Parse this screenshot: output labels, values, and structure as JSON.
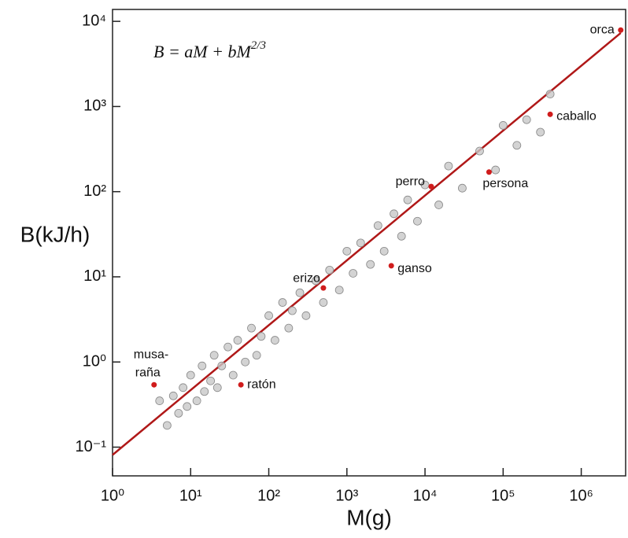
{
  "chart_data": {
    "type": "scatter",
    "annotation": "B = aM + bM",
    "annotation_exponent": "2/3",
    "x_label": "M(g)",
    "y_label": "B(kJ/h)",
    "log_x": true,
    "log_y": true,
    "xlim": [
      1,
      3700000
    ],
    "ylim": [
      0.046,
      13800
    ],
    "xticks": [
      {
        "value": 1,
        "label": "10⁰"
      },
      {
        "value": 10,
        "label": "10¹"
      },
      {
        "value": 100,
        "label": "10²"
      },
      {
        "value": 1000,
        "label": "10³"
      },
      {
        "value": 10000,
        "label": "10⁴"
      },
      {
        "value": 100000,
        "label": "10⁵"
      },
      {
        "value": 1000000,
        "label": "10⁶"
      }
    ],
    "yticks": [
      {
        "value": 0.1,
        "label": "10⁻¹"
      },
      {
        "value": 1,
        "label": "10⁰"
      },
      {
        "value": 10,
        "label": "10¹"
      },
      {
        "value": 100,
        "label": "10²"
      },
      {
        "value": 1000,
        "label": "10³"
      },
      {
        "value": 10000,
        "label": "10⁴"
      }
    ],
    "series": [
      {
        "color": "#c8c8c8",
        "x": [
          4,
          5,
          6,
          7,
          8,
          9,
          10,
          12,
          14,
          15,
          18,
          20,
          22,
          25,
          30,
          35,
          40,
          50,
          60,
          70,
          80,
          100,
          120,
          150,
          180,
          200,
          250,
          300,
          400,
          500,
          600,
          800,
          1000,
          1200,
          1500,
          2000,
          2500,
          3000,
          4000,
          5000,
          6000,
          8000,
          10000,
          15000,
          20000,
          30000,
          50000,
          80000,
          100000,
          150000,
          200000,
          300000,
          400000
        ],
        "values": [
          0.35,
          0.18,
          0.4,
          0.25,
          0.5,
          0.3,
          0.7,
          0.35,
          0.9,
          0.45,
          0.6,
          1.2,
          0.5,
          0.9,
          1.5,
          0.7,
          1.8,
          1.0,
          2.5,
          1.2,
          2.0,
          3.5,
          1.8,
          5.0,
          2.5,
          4.0,
          6.5,
          3.5,
          9.0,
          5.0,
          12,
          7.0,
          20,
          11,
          25,
          14,
          40,
          20,
          55,
          30,
          80,
          45,
          120,
          70,
          200,
          110,
          300,
          180,
          600,
          350,
          700,
          500,
          1400
        ]
      },
      {
        "color": "#d01c1c",
        "labels": [
          "orca",
          "caballo",
          "persona",
          "perro",
          "ganso",
          "erizo",
          "ratón",
          [
            "musa-",
            "raña"
          ]
        ],
        "x": [
          3200000,
          400000,
          66000,
          12000,
          3700,
          500,
          44,
          3.4
        ],
        "values": [
          7900,
          810,
          170,
          115,
          13.5,
          7.4,
          0.54,
          0.54
        ]
      }
    ],
    "fit": {
      "color": "#b01818",
      "x": [
        1,
        3200000
      ],
      "values": [
        0.081,
        7300
      ]
    }
  }
}
